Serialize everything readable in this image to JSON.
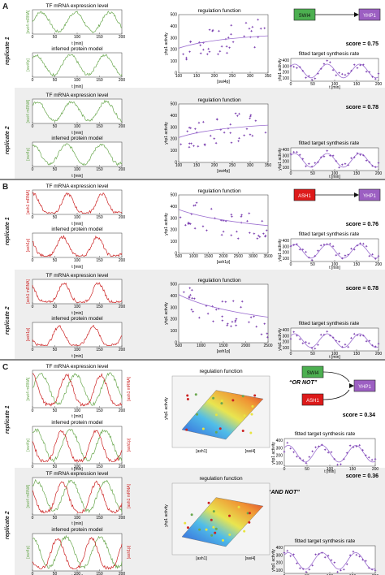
{
  "panels": [
    {
      "letter": "A",
      "tf": "swi4",
      "tf_color": "#6aa84f",
      "box_color": "#4caf50",
      "target": "YHP1",
      "reg_xlabel": "[swi4p]",
      "protein_label": "[swi4p]",
      "mrna_label": "[swi4 mRNA]",
      "reps": [
        {
          "label": "replicate 1",
          "score": "score = 0.75"
        },
        {
          "label": "replicate 2",
          "score": "score = 0.78"
        }
      ]
    },
    {
      "letter": "B",
      "tf": "ash1",
      "tf_color": "#cc2222",
      "box_color": "#dd1a1a",
      "target": "YHP1",
      "reg_xlabel": "[ash1p]",
      "protein_label": "[ash1p]",
      "mrna_label": "[ash1 mRNA]",
      "reps": [
        {
          "label": "replicate 1",
          "score": "score = 0.76"
        },
        {
          "label": "replicate 2",
          "score": "score = 0.78"
        }
      ]
    },
    {
      "letter": "C",
      "tf": "swi4 + ash1",
      "target": "YHP1",
      "reps": [
        {
          "label": "replicate 1",
          "score": "score = 0.34",
          "gate": "“OR NOT”"
        },
        {
          "label": "replicate 2",
          "score": "score = 0.36",
          "gate": "“AND NOT”"
        }
      ]
    }
  ],
  "text": {
    "tf_title": "TF mRNA expression level",
    "protein_title": "inferred protein model",
    "reg_title": "regulation function",
    "fit_title": "fitted target synthesis rate",
    "t_label": "t [min]",
    "yhp_label": "yhp1 activity",
    "swi4_box": "SWI4",
    "ash1_box": "ASH1",
    "yhp1_box": "YHP1",
    "c_swi4": "[swi4]",
    "c_ash1": "[ash1]",
    "c_swi4_mrna": "[swi4 mRNA]",
    "c_ash1_mrna": "[ash1 mRNA]",
    "c_swi4p": "[swi4p]",
    "c_ash1p": "[ash1p]"
  },
  "chart_data": [
    {
      "type": "line",
      "title": "TF mRNA expression level",
      "xlabel": "t [min]",
      "x_ticks": [
        0,
        50,
        100,
        150,
        200
      ],
      "note": "small multiples of TF mRNA and inferred protein time courses (0–200 min) for each panel and replicate"
    },
    {
      "type": "scatter",
      "title": "regulation function",
      "xlabel": "[swi4p]",
      "ylabel": "yhp1 activity",
      "xlim": [
        100,
        350
      ],
      "ylim": [
        0,
        500
      ],
      "x_ticks": [
        100,
        150,
        200,
        250,
        300,
        350
      ],
      "y_ticks": [
        0,
        100,
        200,
        300,
        400,
        500
      ]
    },
    {
      "type": "scatter",
      "title": "regulation function",
      "xlabel": "[ash1p]",
      "ylabel": "yhp1 activity",
      "xlim": [
        500,
        3500
      ],
      "ylim": [
        0,
        500
      ],
      "x_ticks": [
        500,
        1000,
        1500,
        2000,
        2500,
        3000,
        3500
      ],
      "y_ticks": [
        0,
        100,
        200,
        300,
        400,
        500
      ]
    },
    {
      "type": "line",
      "title": "fitted target synthesis rate",
      "xlabel": "t [min]",
      "ylabel": "yhp1 activity",
      "x_ticks": [
        0,
        50,
        100,
        150,
        200
      ],
      "y_ticks": [
        100,
        200,
        300,
        400
      ]
    }
  ]
}
